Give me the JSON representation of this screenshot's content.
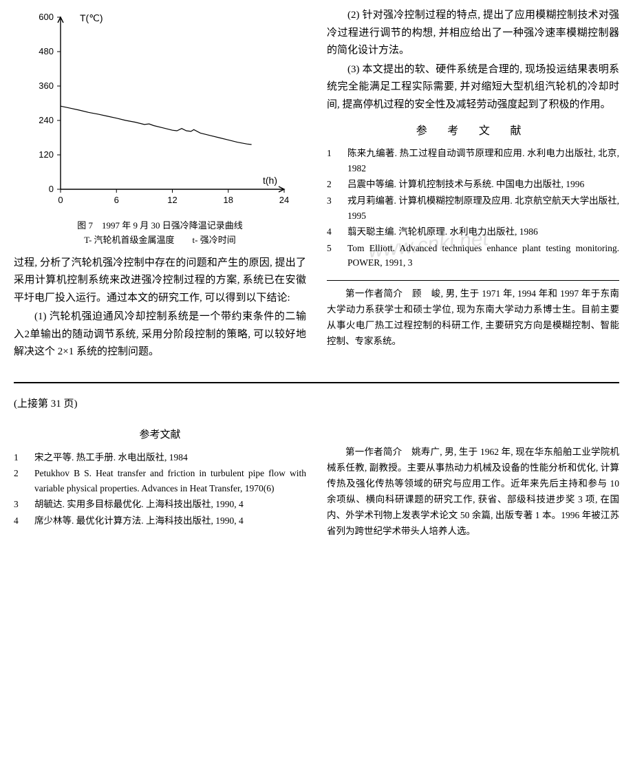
{
  "chart": {
    "type": "line",
    "ylabel": "T(℃)",
    "xlabel": "t(h)",
    "xlim": [
      0,
      24
    ],
    "ylim": [
      0,
      600
    ],
    "xticks": [
      0,
      6,
      12,
      18,
      24
    ],
    "yticks": [
      0,
      120,
      240,
      360,
      480,
      600
    ],
    "line_color": "#000000",
    "line_width": 1.2,
    "axis_color": "#000000",
    "tick_fontsize": 13,
    "label_fontsize": 14,
    "background_color": "#ffffff",
    "points": [
      [
        0,
        290
      ],
      [
        1,
        283
      ],
      [
        2,
        276
      ],
      [
        3,
        268
      ],
      [
        4,
        262
      ],
      [
        5,
        255
      ],
      [
        6,
        248
      ],
      [
        7,
        240
      ],
      [
        8,
        234
      ],
      [
        9,
        226
      ],
      [
        9.5,
        228
      ],
      [
        10,
        222
      ],
      [
        11,
        214
      ],
      [
        12,
        206
      ],
      [
        12.5,
        204
      ],
      [
        13,
        212
      ],
      [
        13.5,
        204
      ],
      [
        14,
        202
      ],
      [
        14.3,
        208
      ],
      [
        15,
        196
      ],
      [
        16,
        188
      ],
      [
        17,
        180
      ],
      [
        18,
        172
      ],
      [
        19,
        164
      ],
      [
        20,
        158
      ],
      [
        20.5,
        156
      ]
    ],
    "caption_line1": "图 7　1997 年 9 月 30 日强冷降温记录曲线",
    "caption_line2": "T- 汽轮机首级金属温度　　t- 强冷时间"
  },
  "left_paragraphs": [
    "过程, 分析了汽轮机强冷控制中存在的问题和产生的原因, 提出了采用计算机控制系统来改进强冷控制过程的方案, 系统已在安徽平圩电厂投入运行。通过本文的研究工作, 可以得到以下结论:",
    "(1) 汽轮机强迫通风冷却控制系统是一个带约束条件的二输入2单输出的随动调节系统, 采用分阶段控制的策略, 可以较好地解决这个 2×1 系统的控制问题。"
  ],
  "right_paragraphs": [
    "(2) 针对强冷控制过程的特点, 提出了应用模糊控制技术对强冷过程进行调节的构想, 并相应给出了一种强冷速率模糊控制器的简化设计方法。",
    "(3) 本文提出的软、硬件系统是合理的, 现场投运结果表明系统完全能满足工程实际需要, 并对缩短大型机组汽轮机的冷却时间, 提高停机过程的安全性及减轻劳动强度起到了积极的作用。"
  ],
  "refs_title": "参 考 文 献",
  "refs_upper": [
    {
      "n": "1",
      "t": "陈来九编著. 热工过程自动调节原理和应用. 水利电力出版社, 北京, 1982"
    },
    {
      "n": "2",
      "t": "吕震中等编. 计算机控制技术与系统. 中国电力出版社, 1996"
    },
    {
      "n": "3",
      "t": "戎月莉编著. 计算机模糊控制原理及应用. 北京航空航天大学出版社, 1995"
    },
    {
      "n": "4",
      "t": "翦天聪主编. 汽轮机原理. 水利电力出版社, 1986"
    },
    {
      "n": "5",
      "t": "Tom Elliott. Advanced techniques enhance plant testing monitoring. POWER, 1991, 3"
    }
  ],
  "author_bio_upper": "第一作者简介　顾　峻, 男, 生于 1971 年, 1994 年和 1997 年于东南大学动力系获学士和硕士学位, 现为东南大学动力系博士生。目前主要从事火电厂热工过程控制的科研工作, 主要研究方向是模糊控制、智能控制、专家系统。",
  "continued_label": "(上接第 31 页)",
  "refs_title_lower": "参考文献",
  "refs_lower": [
    {
      "n": "1",
      "t": "宋之平等. 热工手册. 水电出版社, 1984"
    },
    {
      "n": "2",
      "t": "Petukhov B S. Heat transfer and friction in turbulent pipe flow with variable physical properties. Advances in Heat Transfer, 1970(6)"
    },
    {
      "n": "3",
      "t": "胡毓达. 实用多目标最优化. 上海科技出版社, 1990, 4"
    },
    {
      "n": "4",
      "t": "席少林等. 最优化计算方法. 上海科技出版社, 1990, 4"
    }
  ],
  "author_bio_lower": "第一作者简介　姚寿广, 男, 生于 1962 年, 现在华东船舶工业学院机械系任教, 副教授。主要从事热动力机械及设备的性能分析和优化, 计算传热及强化传热等领域的研究与应用工作。近年来先后主持和参与 10 余项纵、横向科研课题的研究工作, 获省、部级科技进步奖 3 项, 在国内、外学术刊物上发表学术论文 50 余篇, 出版专著 1 本。1996 年被江苏省列为跨世纪学术带头人培养人选。",
  "watermark_text": "www.cnki.net"
}
